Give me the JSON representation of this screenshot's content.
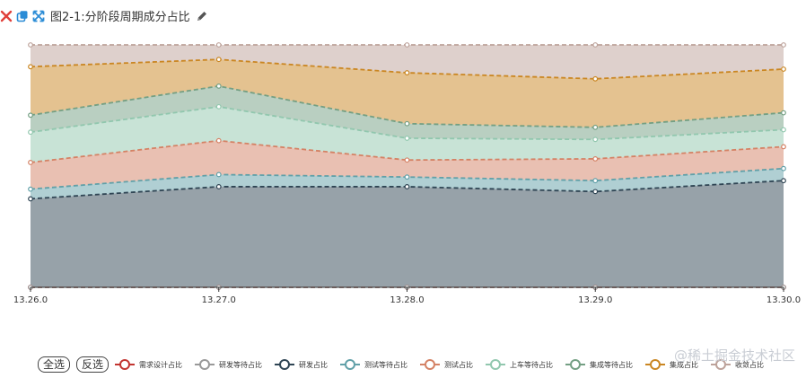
{
  "titlebar": {
    "title": "图2-1:分阶段周期成分占比",
    "icons": [
      "close-icon",
      "copy-icon",
      "fullscreen-icon",
      "edit-icon"
    ]
  },
  "legend": {
    "select_all": "全选",
    "invert": "反选",
    "items": [
      {
        "label": "需求设计占比",
        "color": "#c23531"
      },
      {
        "label": "研发等待占比",
        "color": "#999999"
      },
      {
        "label": "研发占比",
        "color": "#2f4554"
      },
      {
        "label": "测试等待占比",
        "color": "#61a0a8"
      },
      {
        "label": "测试占比",
        "color": "#d48265"
      },
      {
        "label": "上车等待占比",
        "color": "#91c7ae"
      },
      {
        "label": "集成等待占比",
        "color": "#749f83"
      },
      {
        "label": "集成占比",
        "color": "#ca8622"
      },
      {
        "label": "收敛占比",
        "color": "#bda29a"
      }
    ]
  },
  "watermark": "@稀土掘金技术社区",
  "chart_data": {
    "type": "area",
    "stacked": true,
    "categories": [
      "13.26.0",
      "13.27.0",
      "13.28.0",
      "13.29.0",
      "13.30.0"
    ],
    "series": [
      {
        "name": "需求设计占比",
        "color": "#c23531",
        "values": [
          0,
          0,
          0,
          0,
          0
        ]
      },
      {
        "name": "研发等待占比",
        "color": "#999999",
        "values": [
          0,
          0,
          0,
          0,
          0
        ]
      },
      {
        "name": "研发占比",
        "color": "#2f4554",
        "values": [
          36.5,
          41.5,
          41.5,
          39.5,
          44
        ]
      },
      {
        "name": "测试等待占比",
        "color": "#61a0a8",
        "values": [
          4,
          5,
          4,
          4.5,
          5
        ]
      },
      {
        "name": "测试占比",
        "color": "#d48265",
        "values": [
          11,
          14,
          7,
          9,
          9
        ]
      },
      {
        "name": "上车等待占比",
        "color": "#91c7ae",
        "values": [
          12.5,
          14,
          9,
          8,
          7
        ]
      },
      {
        "name": "集成等待占比",
        "color": "#749f83",
        "values": [
          7,
          8.5,
          6,
          5,
          7
        ]
      },
      {
        "name": "集成占比",
        "color": "#ca8622",
        "values": [
          20,
          11,
          21,
          20,
          18
        ]
      },
      {
        "name": "收敛占比",
        "color": "#bda29a",
        "values": [
          9,
          6,
          11.5,
          14,
          10
        ]
      }
    ],
    "ylim": [
      0,
      100
    ],
    "title": "",
    "xlabel": "",
    "ylabel": "",
    "legend": "bottom"
  }
}
